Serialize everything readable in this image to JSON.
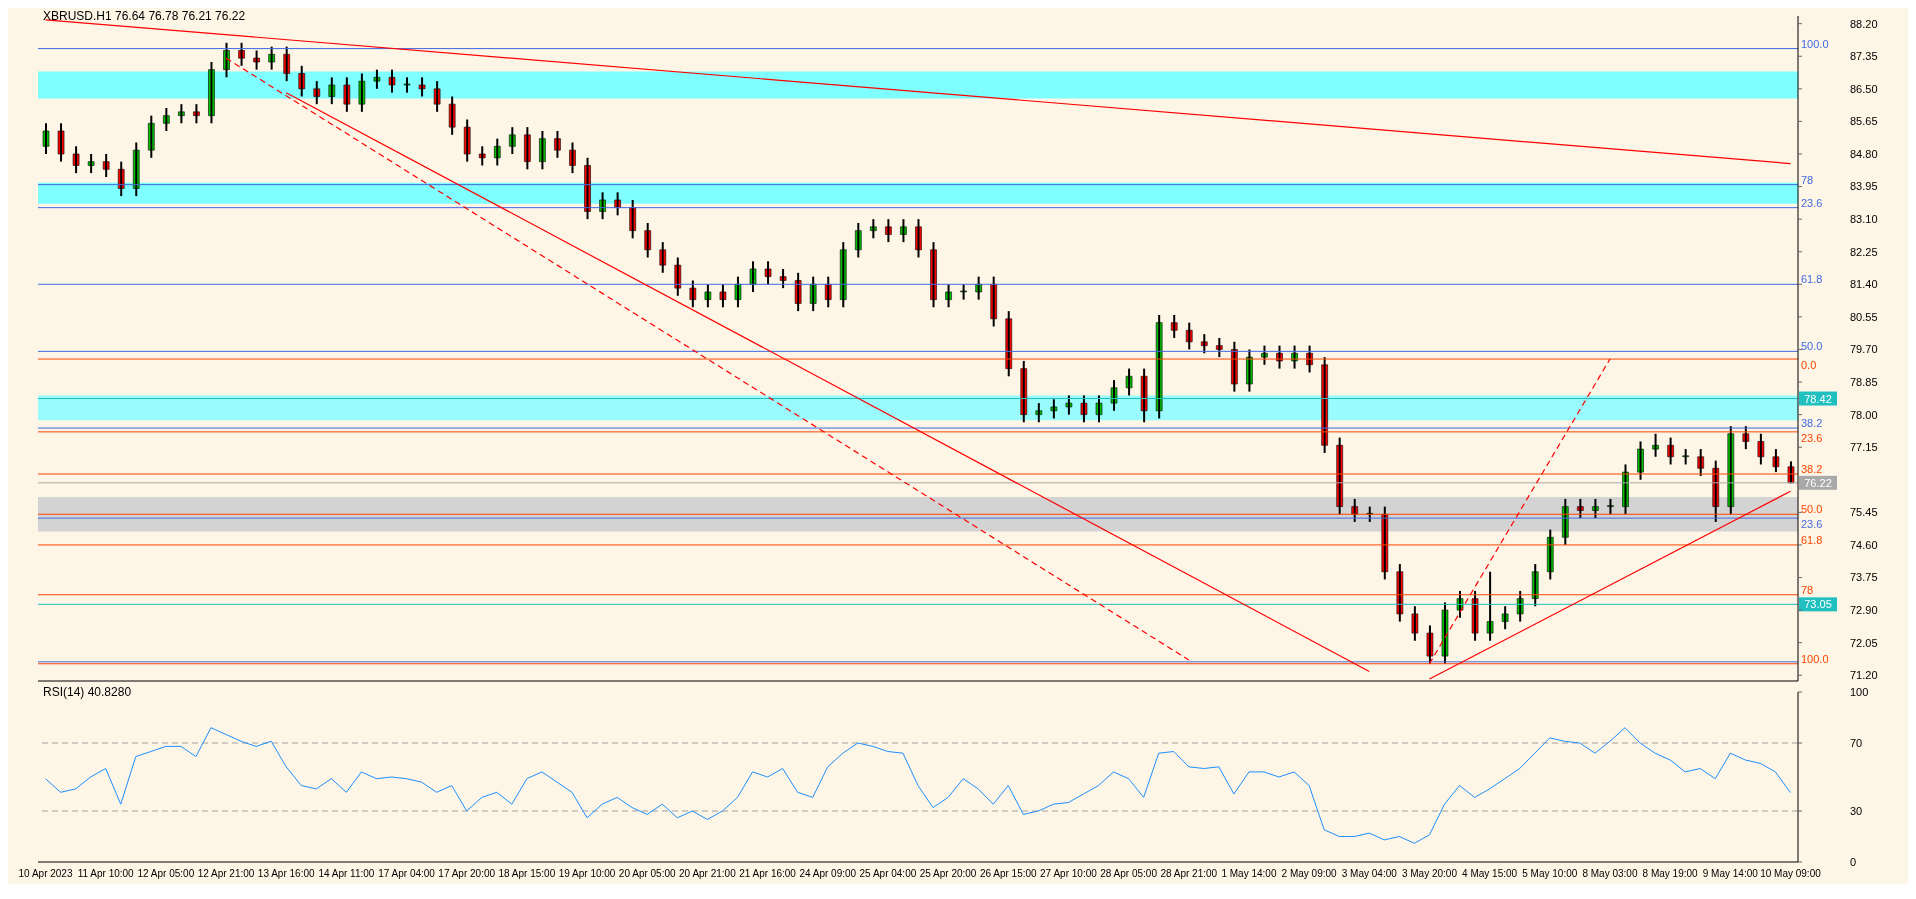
{
  "chart_data": [
    {
      "type": "candlestick",
      "title": "XBRUSD.H1  76.64 76.78 76.21 76.22",
      "tick_labels": "y",
      "categories": [
        "10 Apr 2023",
        null,
        null,
        null,
        "11 Apr 10:00",
        null,
        null,
        null,
        "12 Apr 05:00",
        null,
        null,
        null,
        "12 Apr 21:00",
        null,
        null,
        null,
        "13 Apr 16:00",
        null,
        null,
        null,
        "14 Apr 11:00",
        null,
        null,
        null,
        "17 Apr 04:00",
        null,
        null,
        null,
        "17 Apr 20:00",
        null,
        null,
        null,
        "18 Apr 15:00",
        null,
        null,
        null,
        "19 Apr 10:00",
        null,
        null,
        null,
        "20 Apr 05:00",
        null,
        null,
        null,
        "20 Apr 21:00",
        null,
        null,
        null,
        "21 Apr 16:00",
        null,
        null,
        null,
        "24 Apr 09:00",
        null,
        null,
        null,
        "25 Apr 04:00",
        null,
        null,
        null,
        "25 Apr 20:00",
        null,
        null,
        null,
        "26 Apr 15:00",
        null,
        null,
        null,
        "27 Apr 10:00",
        null,
        null,
        null,
        "28 Apr 05:00",
        null,
        null,
        null,
        "28 Apr 21:00",
        null,
        null,
        null,
        "1 May 14:00",
        null,
        null,
        null,
        "2 May 09:00",
        null,
        null,
        null,
        "3 May 04:00",
        null,
        null,
        null,
        "3 May 20:00",
        null,
        null,
        null,
        "4 May 15:00",
        null,
        null,
        null,
        "5 May 10:00",
        null,
        null,
        null,
        "8 May 03:00",
        null,
        null,
        null,
        "8 May 19:00",
        null,
        null,
        null,
        "9 May 14:00",
        null,
        null,
        null,
        "10 May 09:00"
      ],
      "ohlc": [
        [
          85.0,
          85.6,
          84.8,
          85.4
        ],
        [
          85.4,
          85.6,
          84.6,
          84.8
        ],
        [
          84.8,
          85.0,
          84.3,
          84.5
        ],
        [
          84.5,
          84.8,
          84.3,
          84.6
        ],
        [
          84.6,
          84.8,
          84.2,
          84.4
        ],
        [
          84.4,
          84.6,
          83.7,
          83.9
        ],
        [
          83.9,
          85.1,
          83.7,
          84.9
        ],
        [
          84.9,
          85.8,
          84.7,
          85.6
        ],
        [
          85.6,
          86.0,
          85.4,
          85.8
        ],
        [
          85.8,
          86.1,
          85.6,
          85.9
        ],
        [
          85.9,
          86.1,
          85.6,
          85.8
        ],
        [
          85.8,
          87.2,
          85.6,
          87.0
        ],
        [
          87.0,
          87.7,
          86.8,
          87.5
        ],
        [
          87.5,
          87.7,
          87.1,
          87.3
        ],
        [
          87.3,
          87.5,
          87.0,
          87.2
        ],
        [
          87.2,
          87.6,
          87.0,
          87.4
        ],
        [
          87.4,
          87.6,
          86.7,
          86.9
        ],
        [
          86.9,
          87.1,
          86.3,
          86.5
        ],
        [
          86.5,
          86.7,
          86.1,
          86.3
        ],
        [
          86.3,
          86.8,
          86.1,
          86.6
        ],
        [
          86.6,
          86.8,
          85.9,
          86.1
        ],
        [
          86.1,
          86.9,
          85.9,
          86.7
        ],
        [
          86.7,
          87.0,
          86.5,
          86.8
        ],
        [
          86.8,
          87.0,
          86.4,
          86.6
        ],
        [
          86.6,
          86.8,
          86.4,
          86.6
        ],
        [
          86.6,
          86.8,
          86.3,
          86.5
        ],
        [
          86.5,
          86.7,
          85.9,
          86.1
        ],
        [
          86.1,
          86.3,
          85.3,
          85.5
        ],
        [
          85.5,
          85.7,
          84.6,
          84.8
        ],
        [
          84.8,
          85.0,
          84.5,
          84.7
        ],
        [
          84.7,
          85.2,
          84.5,
          85.0
        ],
        [
          85.0,
          85.5,
          84.8,
          85.3
        ],
        [
          85.3,
          85.5,
          84.4,
          84.6
        ],
        [
          84.6,
          85.4,
          84.4,
          85.2
        ],
        [
          85.2,
          85.4,
          84.7,
          84.9
        ],
        [
          84.9,
          85.1,
          84.3,
          84.5
        ],
        [
          84.5,
          84.7,
          83.1,
          83.3
        ],
        [
          83.3,
          83.8,
          83.1,
          83.6
        ],
        [
          83.6,
          83.8,
          83.2,
          83.4
        ],
        [
          83.4,
          83.6,
          82.6,
          82.8
        ],
        [
          82.8,
          83.0,
          82.1,
          82.3
        ],
        [
          82.3,
          82.5,
          81.7,
          81.9
        ],
        [
          81.9,
          82.1,
          81.1,
          81.3
        ],
        [
          81.3,
          81.5,
          80.8,
          81.0
        ],
        [
          81.0,
          81.4,
          80.8,
          81.2
        ],
        [
          81.2,
          81.4,
          80.8,
          81.0
        ],
        [
          81.0,
          81.6,
          80.8,
          81.4
        ],
        [
          81.4,
          82.0,
          81.2,
          81.8
        ],
        [
          81.8,
          82.0,
          81.4,
          81.6
        ],
        [
          81.6,
          81.8,
          81.3,
          81.5
        ],
        [
          81.5,
          81.7,
          80.7,
          80.9
        ],
        [
          80.9,
          81.6,
          80.7,
          81.4
        ],
        [
          81.4,
          81.6,
          80.8,
          81.0
        ],
        [
          81.0,
          82.5,
          80.8,
          82.3
        ],
        [
          82.3,
          83.0,
          82.1,
          82.8
        ],
        [
          82.8,
          83.1,
          82.6,
          82.9
        ],
        [
          82.9,
          83.1,
          82.5,
          82.7
        ],
        [
          82.7,
          83.1,
          82.5,
          82.9
        ],
        [
          82.9,
          83.1,
          82.1,
          82.3
        ],
        [
          82.3,
          82.5,
          80.8,
          81.0
        ],
        [
          81.0,
          81.4,
          80.8,
          81.2
        ],
        [
          81.2,
          81.4,
          81.0,
          81.2
        ],
        [
          81.2,
          81.6,
          81.0,
          81.4
        ],
        [
          81.4,
          81.6,
          80.3,
          80.5
        ],
        [
          80.5,
          80.7,
          79.0,
          79.2
        ],
        [
          79.2,
          79.4,
          77.8,
          78.0
        ],
        [
          78.0,
          78.3,
          77.8,
          78.1
        ],
        [
          78.1,
          78.4,
          77.9,
          78.2
        ],
        [
          78.2,
          78.5,
          78.0,
          78.3
        ],
        [
          78.3,
          78.5,
          77.8,
          78.0
        ],
        [
          78.0,
          78.5,
          77.8,
          78.3
        ],
        [
          78.3,
          78.9,
          78.1,
          78.7
        ],
        [
          78.7,
          79.2,
          78.5,
          79.0
        ],
        [
          79.0,
          79.2,
          77.8,
          78.1
        ],
        [
          78.1,
          80.6,
          77.9,
          80.4
        ],
        [
          80.4,
          80.6,
          80.0,
          80.2
        ],
        [
          80.2,
          80.4,
          79.7,
          79.9
        ],
        [
          79.9,
          80.1,
          79.6,
          79.8
        ],
        [
          79.8,
          80.0,
          79.5,
          79.7
        ],
        [
          79.7,
          79.9,
          78.6,
          78.8
        ],
        [
          78.8,
          79.7,
          78.6,
          79.5
        ],
        [
          79.5,
          79.8,
          79.3,
          79.6
        ],
        [
          79.6,
          79.8,
          79.2,
          79.4
        ],
        [
          79.4,
          79.8,
          79.2,
          79.6
        ],
        [
          79.6,
          79.8,
          79.1,
          79.3
        ],
        [
          79.3,
          79.5,
          77.0,
          77.2
        ],
        [
          77.2,
          77.4,
          75.4,
          75.6
        ],
        [
          75.6,
          75.8,
          75.2,
          75.4
        ],
        [
          75.4,
          75.6,
          75.2,
          75.4
        ],
        [
          75.4,
          75.6,
          73.7,
          73.9
        ],
        [
          73.9,
          74.1,
          72.6,
          72.8
        ],
        [
          72.8,
          73.0,
          72.1,
          72.3
        ],
        [
          72.3,
          72.5,
          71.5,
          71.7
        ],
        [
          71.7,
          73.1,
          71.5,
          72.9
        ],
        [
          72.9,
          73.4,
          72.7,
          73.2
        ],
        [
          73.2,
          73.4,
          72.1,
          72.3
        ],
        [
          72.3,
          73.9,
          72.1,
          72.6
        ],
        [
          72.6,
          73.0,
          72.4,
          72.8
        ],
        [
          72.8,
          73.4,
          72.6,
          73.2
        ],
        [
          73.2,
          74.1,
          73.0,
          73.9
        ],
        [
          73.9,
          75.0,
          73.7,
          74.8
        ],
        [
          74.8,
          75.8,
          74.6,
          75.6
        ],
        [
          75.6,
          75.8,
          75.3,
          75.5
        ],
        [
          75.5,
          75.8,
          75.3,
          75.6
        ],
        [
          75.6,
          75.8,
          75.4,
          75.6
        ],
        [
          75.6,
          76.7,
          75.4,
          76.5
        ],
        [
          76.5,
          77.3,
          76.3,
          77.1
        ],
        [
          77.1,
          77.5,
          76.9,
          77.2
        ],
        [
          77.2,
          77.4,
          76.7,
          76.9
        ],
        [
          76.9,
          77.1,
          76.7,
          76.9
        ],
        [
          76.9,
          77.1,
          76.4,
          76.6
        ],
        [
          76.6,
          76.8,
          75.2,
          75.6
        ],
        [
          75.6,
          77.7,
          75.4,
          77.5
        ],
        [
          77.5,
          77.7,
          77.1,
          77.3
        ],
        [
          77.3,
          77.5,
          76.7,
          76.9
        ],
        [
          76.9,
          77.1,
          76.5,
          76.64
        ],
        [
          76.64,
          76.78,
          76.21,
          76.22
        ]
      ],
      "series": [
        {
          "type": "line",
          "color": "#ff0000",
          "line_style": "solid",
          "values": [
            88.3,
            null,
            null,
            null,
            null,
            null,
            null,
            null,
            null,
            null,
            null,
            null,
            null,
            null,
            null,
            null,
            null,
            null,
            null,
            null,
            null,
            null,
            null,
            null,
            null,
            null,
            null,
            null,
            null,
            null,
            null,
            null,
            null,
            null,
            null,
            null,
            null,
            null,
            null,
            null,
            null,
            null,
            null,
            null,
            null,
            null,
            null,
            null,
            null,
            null,
            null,
            null,
            null,
            null,
            null,
            null,
            null,
            null,
            null,
            null,
            null,
            null,
            null,
            null,
            null,
            null,
            null,
            null,
            null,
            null,
            null,
            null,
            null,
            null,
            null,
            null,
            null,
            null,
            null,
            null,
            null,
            null,
            null,
            null,
            null,
            null,
            null,
            null,
            null,
            null,
            null,
            null,
            null,
            null,
            null,
            null,
            null,
            null,
            null,
            null,
            null,
            null,
            null,
            null,
            null,
            null,
            null,
            null,
            null,
            null,
            null,
            null,
            null,
            null,
            null,
            null,
            84.55
          ]
        },
        {
          "type": "line",
          "color": "#ff0000",
          "line_style": "solid",
          "values": [
            null,
            null,
            null,
            null,
            null,
            null,
            null,
            null,
            null,
            null,
            null,
            null,
            null,
            null,
            null,
            null,
            86.4,
            null,
            null,
            null,
            null,
            null,
            null,
            null,
            null,
            null,
            null,
            null,
            null,
            null,
            null,
            null,
            null,
            null,
            null,
            null,
            null,
            null,
            null,
            null,
            null,
            null,
            null,
            null,
            null,
            null,
            null,
            null,
            null,
            null,
            null,
            null,
            null,
            null,
            null,
            null,
            null,
            null,
            null,
            null,
            null,
            null,
            null,
            null,
            null,
            null,
            null,
            null,
            null,
            null,
            null,
            null,
            null,
            null,
            null,
            null,
            null,
            null,
            null,
            null,
            null,
            null,
            null,
            null,
            null,
            null,
            null,
            null,
            71.3,
            null,
            null,
            null,
            null,
            null,
            null,
            null,
            null,
            null,
            null,
            null,
            null,
            null,
            null,
            null,
            null,
            null,
            null,
            null,
            null,
            null,
            null,
            null,
            null,
            null,
            null,
            null,
            null
          ]
        },
        {
          "type": "line",
          "color": "#ff0000",
          "line_style": "dashed",
          "values": [
            null,
            null,
            null,
            null,
            null,
            null,
            null,
            null,
            null,
            null,
            null,
            null,
            87.3,
            null,
            null,
            null,
            null,
            null,
            null,
            null,
            null,
            null,
            null,
            null,
            null,
            null,
            null,
            null,
            null,
            null,
            null,
            null,
            null,
            null,
            null,
            null,
            null,
            null,
            null,
            null,
            null,
            null,
            null,
            null,
            null,
            null,
            null,
            null,
            null,
            null,
            null,
            null,
            null,
            null,
            null,
            null,
            null,
            null,
            null,
            null,
            null,
            null,
            null,
            null,
            null,
            null,
            null,
            null,
            null,
            null,
            null,
            null,
            null,
            null,
            null,
            null,
            71.6,
            null,
            null,
            null,
            null,
            null,
            null,
            null,
            null,
            null,
            null,
            null,
            null,
            null,
            null,
            null,
            null,
            null,
            null,
            null,
            null,
            null,
            null,
            null,
            null,
            null,
            null,
            null,
            null,
            null,
            null,
            null,
            null,
            null,
            null,
            null,
            null,
            null,
            null,
            null,
            null
          ]
        },
        {
          "type": "line",
          "color": "#ff0000",
          "line_style": "dashed",
          "values": [
            null,
            null,
            null,
            null,
            null,
            null,
            null,
            null,
            null,
            null,
            null,
            null,
            null,
            null,
            null,
            null,
            null,
            null,
            null,
            null,
            null,
            null,
            null,
            null,
            null,
            null,
            null,
            null,
            null,
            null,
            null,
            null,
            null,
            null,
            null,
            null,
            null,
            null,
            null,
            null,
            null,
            null,
            null,
            null,
            null,
            null,
            null,
            null,
            null,
            null,
            null,
            null,
            null,
            null,
            null,
            null,
            null,
            null,
            null,
            null,
            null,
            null,
            null,
            null,
            null,
            null,
            null,
            null,
            null,
            null,
            null,
            null,
            null,
            null,
            null,
            null,
            null,
            null,
            null,
            null,
            null,
            null,
            null,
            null,
            null,
            null,
            null,
            null,
            null,
            null,
            null,
            null,
            71.5,
            null,
            null,
            null,
            null,
            null,
            null,
            null,
            null,
            null,
            null,
            null,
            79.45,
            null,
            null,
            null,
            null,
            null,
            null,
            null,
            null,
            null,
            null,
            null,
            null
          ]
        },
        {
          "type": "line",
          "color": "#ff0000",
          "line_style": "solid",
          "values": [
            null,
            null,
            null,
            null,
            null,
            null,
            null,
            null,
            null,
            null,
            null,
            null,
            null,
            null,
            null,
            null,
            null,
            null,
            null,
            null,
            null,
            null,
            null,
            null,
            null,
            null,
            null,
            null,
            null,
            null,
            null,
            null,
            null,
            null,
            null,
            null,
            null,
            null,
            null,
            null,
            null,
            null,
            null,
            null,
            null,
            null,
            null,
            null,
            null,
            null,
            null,
            null,
            null,
            null,
            null,
            null,
            null,
            null,
            null,
            null,
            null,
            null,
            null,
            null,
            null,
            null,
            null,
            null,
            null,
            null,
            null,
            null,
            null,
            null,
            null,
            null,
            null,
            null,
            null,
            null,
            null,
            null,
            null,
            null,
            null,
            null,
            null,
            null,
            null,
            null,
            null,
            null,
            71.1,
            null,
            null,
            null,
            null,
            null,
            null,
            null,
            null,
            null,
            null,
            null,
            null,
            null,
            null,
            null,
            null,
            null,
            null,
            null,
            null,
            null,
            null,
            null,
            76.0
          ]
        }
      ],
      "ylim": [
        71.05,
        88.4
      ],
      "yticks": [
        {
          "value": 88.2,
          "label": "88.20"
        },
        87.35,
        {
          "value": 86.5,
          "label": "86.50"
        },
        85.65,
        {
          "value": 84.8,
          "label": "84.80"
        },
        83.95,
        {
          "value": 83.1,
          "label": "83.10"
        },
        82.25,
        {
          "value": 81.4,
          "label": "81.40"
        },
        80.55,
        {
          "value": 79.7,
          "label": "79.70"
        },
        78.85,
        {
          "value": 78.0,
          "label": "78.00"
        },
        77.15,
        75.45,
        {
          "value": 74.6,
          "label": "74.60"
        },
        73.75,
        {
          "value": 72.9,
          "label": "72.90"
        },
        72.05,
        {
          "value": 71.2,
          "label": "71.20"
        }
      ],
      "bands": [
        {
          "axis": "y",
          "from": 86.25,
          "to": 86.95,
          "color": "#7fffff"
        },
        {
          "axis": "y",
          "from": 83.5,
          "to": 84.05,
          "color": "#7fffff"
        },
        {
          "axis": "y",
          "from": 77.85,
          "to": 78.5,
          "color": "#99fbfb"
        },
        {
          "axis": "y",
          "from": 74.95,
          "to": 75.85,
          "color": "#d3d3d3"
        }
      ],
      "ref_lines": [
        {
          "axis": "y",
          "value": 87.55,
          "color": "#4169e1"
        },
        {
          "axis": "y",
          "value": 84.0,
          "color": "#4169e1"
        },
        {
          "axis": "y",
          "value": 83.4,
          "color": "#4169e1"
        },
        {
          "axis": "y",
          "value": 81.4,
          "color": "#4169e1"
        },
        {
          "axis": "y",
          "value": 79.65,
          "color": "#4169e1"
        },
        {
          "axis": "y",
          "value": 79.45,
          "color": "#ff4500"
        },
        {
          "axis": "y",
          "value": 78.42,
          "label": "78.42",
          "color": "#20c0c0"
        },
        {
          "axis": "y",
          "value": 77.65,
          "color": "#4169e1"
        },
        {
          "axis": "y",
          "value": 77.55,
          "color": "#ff4500"
        },
        {
          "axis": "y",
          "value": 76.45,
          "color": "#ff4500"
        },
        {
          "axis": "y",
          "value": 76.22,
          "label": "76.22",
          "color": "#a9a9a9"
        },
        {
          "axis": "y",
          "value": 75.4,
          "color": "#ff4500"
        },
        {
          "axis": "y",
          "value": 75.3,
          "color": "#4169e1"
        },
        {
          "axis": "y",
          "value": 74.6,
          "color": "#ff4500"
        },
        {
          "axis": "y",
          "value": 73.3,
          "color": "#ff4500"
        },
        {
          "axis": "y",
          "value": 73.05,
          "label": "73.05",
          "color": "#20c0c0"
        },
        {
          "axis": "y",
          "value": 71.55,
          "color": "#4169e1"
        },
        {
          "axis": "y",
          "value": 71.5,
          "color": "#ff4500"
        }
      ],
      "annotations": [
        {
          "text": "100.0",
          "x": "10 May 09:00",
          "y": 87.55
        },
        {
          "text": "78",
          "x": "10 May 09:00",
          "y": 84.0
        },
        {
          "text": "23.6",
          "x": "10 May 09:00",
          "y": 83.4
        },
        {
          "text": "61.8",
          "x": "10 May 09:00",
          "y": 81.4
        },
        {
          "text": "50.0",
          "x": "10 May 09:00",
          "y": 79.65
        },
        {
          "text": "0.0",
          "x": "10 May 09:00",
          "y": 79.45
        },
        {
          "text": "38.2",
          "x": "10 May 09:00",
          "y": 77.65
        },
        {
          "text": "23.6",
          "x": "10 May 09:00",
          "y": 77.55
        },
        {
          "text": "38.2",
          "x": "10 May 09:00",
          "y": 76.45
        },
        {
          "text": "50.0",
          "x": "10 May 09:00",
          "y": 75.4
        },
        {
          "text": "23.6",
          "x": "10 May 09:00",
          "y": 75.3
        },
        {
          "text": "61.8",
          "x": "10 May 09:00",
          "y": 74.6
        },
        {
          "text": "78",
          "x": "10 May 09:00",
          "y": 73.3
        },
        {
          "text": "100.0",
          "x": "10 May 09:00",
          "y": 71.5
        }
      ]
    },
    {
      "type": "line",
      "title": "RSI(14) 40.8280",
      "color": "#1e90ff",
      "categories": [
        "10 Apr 2023",
        null,
        null,
        null,
        "11 Apr 10:00",
        null,
        null,
        null,
        "12 Apr 05:00",
        null,
        null,
        null,
        "12 Apr 21:00",
        null,
        null,
        null,
        "13 Apr 16:00",
        null,
        null,
        null,
        "14 Apr 11:00",
        null,
        null,
        null,
        "17 Apr 04:00",
        null,
        null,
        null,
        "17 Apr 20:00",
        null,
        null,
        null,
        "18 Apr 15:00",
        null,
        null,
        null,
        "19 Apr 10:00",
        null,
        null,
        null,
        "20 Apr 05:00",
        null,
        null,
        null,
        "20 Apr 21:00",
        null,
        null,
        null,
        "21 Apr 16:00",
        null,
        null,
        null,
        "24 Apr 09:00",
        null,
        null,
        null,
        "25 Apr 04:00",
        null,
        null,
        null,
        "25 Apr 20:00",
        null,
        null,
        null,
        "26 Apr 15:00",
        null,
        null,
        null,
        "27 Apr 10:00",
        null,
        null,
        null,
        "28 Apr 05:00",
        null,
        null,
        null,
        "28 Apr 21:00",
        null,
        null,
        null,
        "1 May 14:00",
        null,
        null,
        null,
        "2 May 09:00",
        null,
        null,
        null,
        "3 May 04:00",
        null,
        null,
        null,
        "3 May 20:00",
        null,
        null,
        null,
        "4 May 15:00",
        null,
        null,
        null,
        "5 May 10:00",
        null,
        null,
        null,
        "8 May 03:00",
        null,
        null,
        null,
        "8 May 19:00",
        null,
        null,
        null,
        "9 May 14:00",
        null,
        null,
        null,
        "10 May 09:00"
      ],
      "values": [
        49,
        41,
        43,
        50,
        55,
        34,
        62,
        65,
        68,
        68,
        62,
        79,
        75,
        71,
        68,
        71,
        56,
        45,
        43,
        49,
        41,
        53,
        49,
        50,
        49,
        47,
        41,
        45,
        30,
        38,
        41,
        34,
        49,
        53,
        47,
        41,
        26,
        34,
        38,
        32,
        28,
        34,
        26,
        30,
        25,
        30,
        38,
        53,
        50,
        55,
        41,
        38,
        56,
        64,
        70,
        68,
        65,
        64,
        45,
        32,
        38,
        49,
        43,
        34,
        45,
        28,
        30,
        34,
        35,
        40,
        45,
        53,
        49,
        38,
        64,
        65,
        56,
        55,
        56,
        40,
        53,
        53,
        50,
        53,
        45,
        19,
        15,
        15,
        17,
        13,
        15,
        11,
        16,
        34,
        45,
        38,
        43,
        49,
        55,
        64,
        73,
        71,
        70,
        64,
        71,
        79,
        70,
        64,
        60,
        53,
        55,
        49,
        64,
        60,
        58,
        53,
        40.8
      ],
      "ylim": [
        0,
        100
      ],
      "yticks": [
        0,
        30,
        70,
        100
      ],
      "ref_lines": [
        {
          "axis": "y",
          "value": 70,
          "color": "#a0a0a0",
          "line_style": "dashed"
        },
        {
          "axis": "y",
          "value": 30,
          "color": "#a0a0a0",
          "line_style": "dashed"
        }
      ]
    }
  ]
}
